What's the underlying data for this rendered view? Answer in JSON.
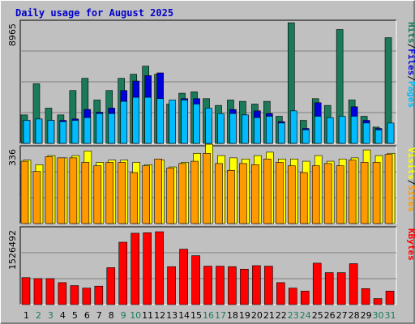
{
  "chart_data": [
    {
      "type": "bar",
      "title": "Daily usage for August 2025",
      "panel": "top",
      "categories": [
        "1",
        "2",
        "3",
        "4",
        "5",
        "6",
        "7",
        "8",
        "9",
        "10",
        "11",
        "12",
        "13",
        "14",
        "15",
        "16",
        "17",
        "18",
        "19",
        "20",
        "21",
        "22",
        "23",
        "24",
        "25",
        "26",
        "27",
        "28",
        "29",
        "30",
        "31"
      ],
      "weekend_days": [
        "2",
        "3",
        "9",
        "10",
        "16",
        "17",
        "23",
        "24",
        "30",
        "31"
      ],
      "ymax_label": "8965",
      "ylim": [
        0,
        8965
      ],
      "series": [
        {
          "name": "Hits",
          "color": "#1a7a5a",
          "values": [
            2100,
            4400,
            2600,
            2100,
            3900,
            4800,
            3200,
            3900,
            4800,
            5100,
            5700,
            5100,
            2900,
            3700,
            3800,
            3300,
            2800,
            3200,
            3100,
            2900,
            3100,
            2000,
            8900,
            1700,
            3300,
            2800,
            8400,
            3200,
            2000,
            1200,
            7800
          ]
        },
        {
          "name": "Files",
          "color": "#0000dd",
          "values": [
            1700,
            1800,
            1700,
            1700,
            1800,
            2500,
            2300,
            2600,
            3900,
            4600,
            5000,
            5200,
            2700,
            3300,
            3300,
            1900,
            1900,
            2500,
            2100,
            2400,
            2200,
            1600,
            1700,
            1100,
            3000,
            1700,
            1700,
            2700,
            1700,
            1100,
            1300
          ]
        },
        {
          "name": "Pages",
          "color": "#00bbff",
          "values": [
            1700,
            1800,
            1700,
            1600,
            1700,
            1900,
            2200,
            2200,
            3100,
            3400,
            3400,
            3300,
            3200,
            3200,
            2900,
            2600,
            2200,
            2200,
            2100,
            1900,
            2000,
            1500,
            2400,
            1000,
            2000,
            1900,
            2000,
            2000,
            1500,
            1000,
            1500
          ]
        }
      ]
    },
    {
      "type": "bar",
      "panel": "middle",
      "ymax_label": "336",
      "ylim": [
        0,
        336
      ],
      "series": [
        {
          "name": "Visits",
          "color": "#ffff00",
          "values": [
            280,
            260,
            300,
            290,
            300,
            320,
            270,
            280,
            280,
            270,
            260,
            280,
            250,
            270,
            310,
            350,
            300,
            290,
            285,
            300,
            315,
            285,
            285,
            275,
            300,
            275,
            285,
            290,
            325,
            300,
            310
          ]
        },
        {
          "name": "Sites",
          "color": "#ff9900",
          "values": [
            275,
            230,
            295,
            290,
            290,
            270,
            255,
            270,
            270,
            225,
            255,
            285,
            245,
            265,
            275,
            310,
            265,
            235,
            265,
            260,
            285,
            270,
            255,
            225,
            255,
            265,
            255,
            280,
            270,
            270,
            305
          ]
        }
      ]
    },
    {
      "type": "bar",
      "panel": "bottom",
      "ymax_label": "1526492",
      "ylim": [
        0,
        1526492
      ],
      "series": [
        {
          "name": "KBytes",
          "color": "#ff0000",
          "values": [
            540000,
            520000,
            520000,
            440000,
            380000,
            330000,
            370000,
            740000,
            1250000,
            1430000,
            1440000,
            1460000,
            760000,
            1110000,
            980000,
            770000,
            770000,
            760000,
            710000,
            780000,
            770000,
            440000,
            330000,
            270000,
            830000,
            640000,
            640000,
            820000,
            320000,
            120000,
            270000
          ]
        }
      ]
    }
  ],
  "header": {
    "title": "Daily usage for August 2025"
  },
  "legend_top": [
    {
      "label": "Pages",
      "color": "#00bbff"
    },
    {
      "label": "/",
      "color": "#000000"
    },
    {
      "label": "Files",
      "color": "#0000dd"
    },
    {
      "label": "/",
      "color": "#000000"
    },
    {
      "label": "Hits",
      "color": "#1a7a5a"
    }
  ],
  "legend_mid": [
    {
      "label": "Sites",
      "color": "#ff9900"
    },
    {
      "label": "/",
      "color": "#000000"
    },
    {
      "label": "Visits",
      "color": "#ffff00"
    }
  ],
  "legend_bot": [
    {
      "label": "KBytes",
      "color": "#ff0000"
    }
  ],
  "colors": {
    "background": "#c0c0c0",
    "weekend_label": "#1a7a5a",
    "weekday_label": "#000000",
    "gridline": "#808080",
    "title": "#0000cc"
  }
}
